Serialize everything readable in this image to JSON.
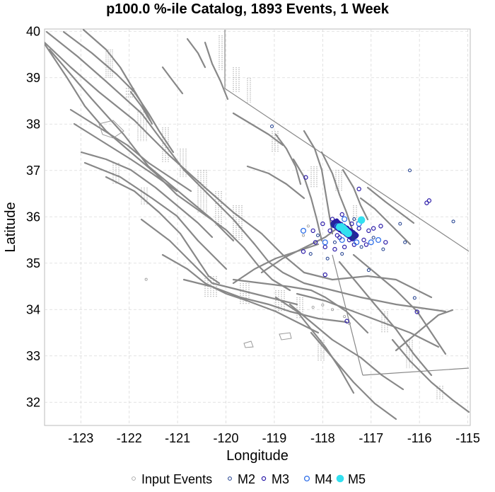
{
  "chart_data": {
    "type": "scatter",
    "title": "p100.0 %-ile Catalog, 1893 Events, 1 Week",
    "xlabel": "Longitude",
    "ylabel": "Latitude",
    "xlim": [
      -123.75,
      -114.95
    ],
    "ylim": [
      31.5,
      40.05
    ],
    "xticks": [
      -123,
      -122,
      -121,
      -120,
      -119,
      -118,
      -117,
      -116,
      -115
    ],
    "yticks": [
      32,
      33,
      34,
      35,
      36,
      37,
      38,
      39,
      40
    ],
    "grid": true,
    "legend_position": "bottom",
    "colors": {
      "input": "#999999",
      "m2": "#1a3a8c",
      "m3": "#2a1aa8",
      "m4": "#2f6fe8",
      "m5": "#33e0f0",
      "fault": "#888888"
    },
    "legend": [
      {
        "key": "input",
        "label": "Input Events"
      },
      {
        "key": "m2",
        "label": "M2"
      },
      {
        "key": "m3",
        "label": "M3"
      },
      {
        "key": "m4",
        "label": "M4"
      },
      {
        "key": "m5",
        "label": "M5"
      }
    ],
    "series": [
      {
        "key": "m2",
        "points": [
          [
            -119.05,
            37.95
          ],
          [
            -116.2,
            37.0
          ],
          [
            -116.4,
            35.85
          ],
          [
            -115.3,
            35.9
          ],
          [
            -116.3,
            35.45
          ],
          [
            -118.25,
            35.2
          ],
          [
            -117.9,
            35.1
          ],
          [
            -118.1,
            35.6
          ],
          [
            -116.95,
            35.55
          ],
          [
            -117.05,
            34.85
          ],
          [
            -116.1,
            34.25
          ],
          [
            -117.2,
            35.35
          ],
          [
            -117.75,
            35.45
          ],
          [
            -117.35,
            35.95
          ],
          [
            -117.6,
            35.2
          ],
          [
            -116.75,
            35.3
          ]
        ]
      },
      {
        "key": "m3",
        "points": [
          [
            -118.35,
            36.85
          ],
          [
            -117.25,
            36.6
          ],
          [
            -115.8,
            36.35
          ],
          [
            -115.85,
            36.3
          ],
          [
            -116.95,
            35.75
          ],
          [
            -116.8,
            35.8
          ],
          [
            -117.05,
            35.7
          ],
          [
            -118.0,
            35.85
          ],
          [
            -118.2,
            35.7
          ],
          [
            -118.15,
            35.45
          ],
          [
            -117.95,
            35.35
          ],
          [
            -117.85,
            35.7
          ],
          [
            -117.65,
            35.55
          ],
          [
            -117.45,
            35.5
          ],
          [
            -117.3,
            35.6
          ],
          [
            -117.15,
            35.5
          ],
          [
            -117.55,
            35.35
          ],
          [
            -117.7,
            35.6
          ],
          [
            -117.4,
            35.85
          ],
          [
            -117.6,
            36.05
          ],
          [
            -117.8,
            35.95
          ],
          [
            -117.25,
            35.75
          ],
          [
            -117.35,
            35.4
          ],
          [
            -117.75,
            35.3
          ],
          [
            -117.5,
            33.75
          ],
          [
            -117.95,
            34.75
          ],
          [
            -116.7,
            35.45
          ],
          [
            -116.05,
            33.95
          ],
          [
            -118.4,
            35.25
          ],
          [
            -117.1,
            35.4
          ]
        ]
      },
      {
        "key": "m4",
        "points": [
          [
            -118.4,
            35.7
          ],
          [
            -117.95,
            35.45
          ],
          [
            -117.3,
            35.45
          ],
          [
            -117.0,
            35.45
          ],
          [
            -116.85,
            35.5
          ],
          [
            -117.55,
            35.95
          ],
          [
            -117.25,
            35.85
          ],
          [
            -117.7,
            35.8
          ],
          [
            -117.45,
            35.65
          ],
          [
            -117.6,
            35.5
          ]
        ]
      },
      {
        "key": "m5",
        "points": [
          [
            -117.55,
            35.7
          ],
          [
            -117.2,
            35.93
          ],
          [
            -117.65,
            35.78
          ]
        ]
      },
      {
        "key": "input",
        "points": [
          [
            -121.65,
            34.65
          ],
          [
            -118.2,
            34.05
          ],
          [
            -118.0,
            34.1
          ],
          [
            -117.8,
            34.0
          ],
          [
            -117.55,
            33.85
          ],
          [
            -117.45,
            33.7
          ],
          [
            -118.4,
            35.6
          ],
          [
            -118.3,
            35.8
          ]
        ]
      }
    ],
    "dense_cluster": {
      "key": "m3",
      "center": [
        -117.55,
        35.72
      ],
      "spread": [
        0.22,
        0.18
      ],
      "count": 420
    }
  }
}
